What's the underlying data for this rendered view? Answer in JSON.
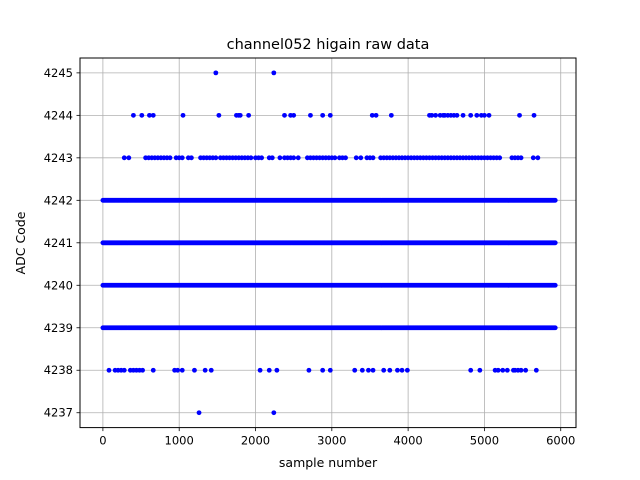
{
  "chart_data": {
    "type": "scatter",
    "title": "channel052 higain raw data",
    "xlabel": "sample number",
    "ylabel": "ADC Code",
    "xlim": [
      -300,
      6200
    ],
    "ylim": [
      4236.65,
      4245.35
    ],
    "xticks": [
      0,
      1000,
      2000,
      3000,
      4000,
      5000,
      6000
    ],
    "yticks": [
      4237,
      4238,
      4239,
      4240,
      4241,
      4242,
      4243,
      4244,
      4245
    ],
    "grid": true,
    "marker_color": "#0000ff",
    "sample_range": [
      0,
      5935
    ],
    "dense_levels": [
      4239,
      4240,
      4241,
      4242
    ],
    "points": [
      {
        "y": 4245,
        "x": [
          1480,
          2240
        ]
      },
      {
        "y": 4244,
        "x": [
          400,
          510,
          610,
          660,
          1050,
          1520,
          1750,
          1780,
          1800,
          1910,
          2380,
          2460,
          2500,
          2720,
          2880,
          2980,
          3530,
          3580,
          3780,
          4280,
          4310,
          4360,
          4420,
          4460,
          4480,
          4520,
          4560,
          4600,
          4640,
          4720,
          4820,
          4900,
          4960,
          5000,
          5060,
          5460,
          5650
        ]
      },
      {
        "y": 4243,
        "x": [
          280,
          340,
          560,
          600,
          640,
          680,
          720,
          760,
          800,
          840,
          880,
          960,
          1000,
          1040,
          1120,
          1160,
          1280,
          1320,
          1360,
          1400,
          1440,
          1480,
          1540,
          1580,
          1620,
          1660,
          1700,
          1740,
          1780,
          1820,
          1860,
          1900,
          1940,
          2000,
          2040,
          2080,
          2180,
          2220,
          2320,
          2380,
          2420,
          2460,
          2500,
          2560,
          2680,
          2720,
          2760,
          2800,
          2840,
          2880,
          2920,
          2960,
          3000,
          3040,
          3100,
          3140,
          3180,
          3320,
          3380,
          3460,
          3500,
          3540,
          3640,
          3680,
          3720,
          3760,
          3800,
          3840,
          3880,
          3920,
          3960,
          4000,
          4040,
          4080,
          4120,
          4160,
          4200,
          4240,
          4280,
          4320,
          4360,
          4400,
          4440,
          4480,
          4520,
          4560,
          4600,
          4640,
          4680,
          4720,
          4760,
          4800,
          4840,
          4880,
          4920,
          4960,
          5000,
          5040,
          5080,
          5120,
          5160,
          5200,
          5360,
          5400,
          5440,
          5480,
          5640,
          5700
        ]
      },
      {
        "y": 4238,
        "x": [
          80,
          160,
          200,
          240,
          280,
          360,
          400,
          440,
          480,
          520,
          660,
          940,
          980,
          1040,
          1200,
          1340,
          1420,
          2060,
          2180,
          2280,
          2700,
          2880,
          2980,
          3300,
          3400,
          3480,
          3540,
          3680,
          3760,
          3860,
          3920,
          3990,
          4820,
          4940,
          5140,
          5180,
          5240,
          5300,
          5380,
          5400,
          5440,
          5480,
          5540,
          5680
        ]
      },
      {
        "y": 4237,
        "x": [
          1260,
          2240
        ]
      }
    ]
  }
}
